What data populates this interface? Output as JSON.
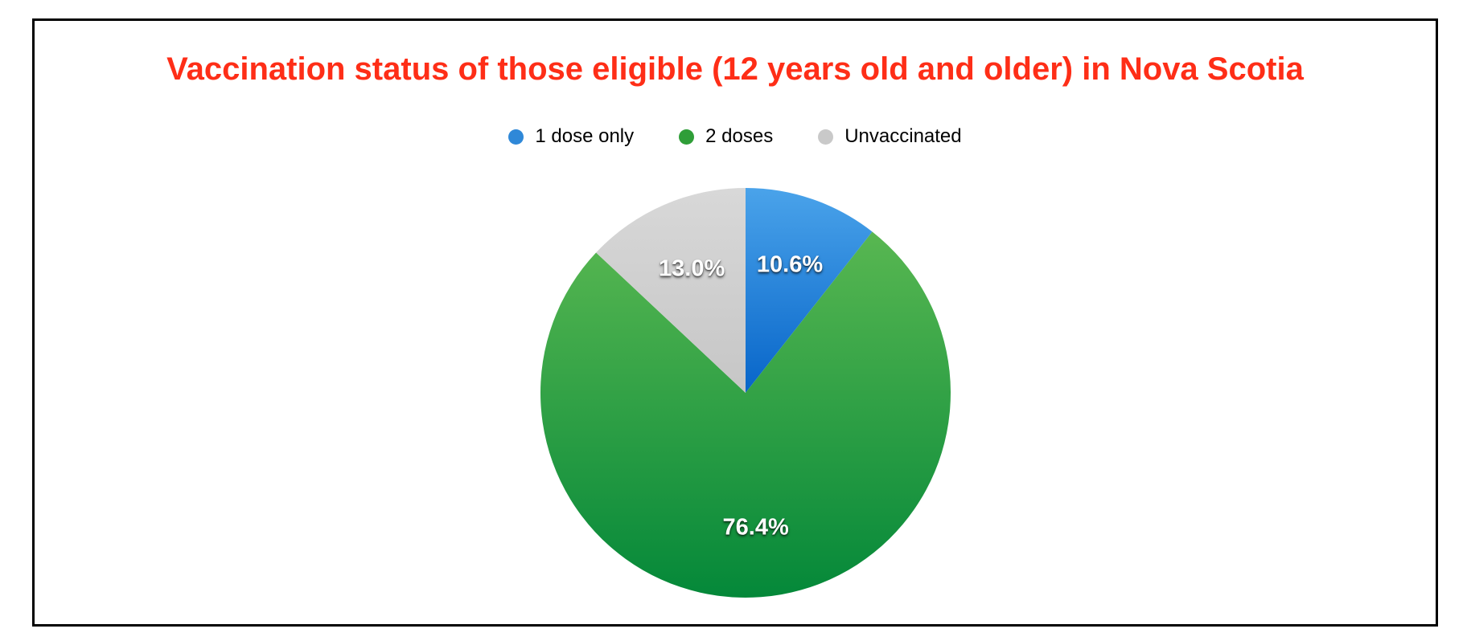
{
  "title": {
    "text": "Vaccination status of those eligible (12 years old and older) in Nova Scotia",
    "color": "#fe2e17"
  },
  "legend": {
    "position": "top",
    "items": [
      {
        "label": "1 dose only",
        "color": "#2f88d8"
      },
      {
        "label": "2 doses",
        "color": "#2f9e38"
      },
      {
        "label": "Unvaccinated",
        "color": "#c9c9c9"
      }
    ]
  },
  "chart_data": {
    "type": "pie",
    "title": "Vaccination status of those eligible (12 years old and older) in Nova Scotia",
    "start_angle_deg": 0,
    "direction": "clockwise",
    "label_radius_ratio": 0.66,
    "slices": [
      {
        "label": "1 dose only",
        "value": 10.6,
        "display": "10.6%",
        "color_top": "#4aa3ea",
        "color_bottom": "#0765c9"
      },
      {
        "label": "2 doses",
        "value": 76.4,
        "display": "76.4%",
        "color_top": "#58b751",
        "color_bottom": "#048839"
      },
      {
        "label": "Unvaccinated",
        "value": 13.0,
        "display": "13.0%",
        "color_top": "#d8d8d8",
        "color_bottom": "#c6c6c6"
      }
    ]
  }
}
